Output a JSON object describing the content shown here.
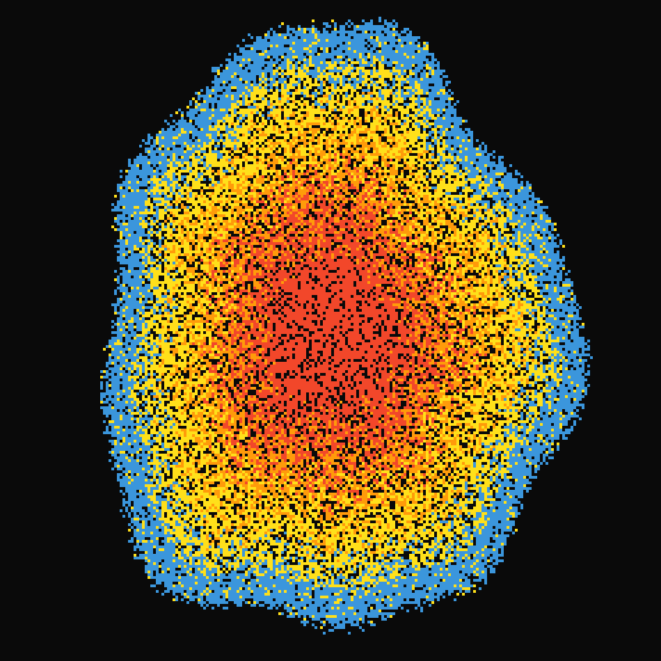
{
  "canvas": {
    "background": "#0a0a0a",
    "palette": [
      "#f2472a",
      "#ff9b0a",
      "#ffe01a",
      "#3b96dc"
    ]
  }
}
